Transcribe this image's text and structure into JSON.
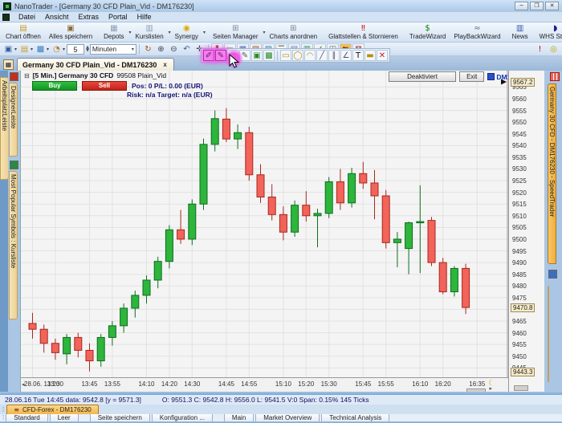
{
  "window": {
    "title": "NanoTrader - [Germany 30 CFD  Plain_Vid - DM176230]",
    "controls": [
      {
        "name": "minimize-button",
        "glyph": "─"
      },
      {
        "name": "maximize-button",
        "glyph": "❐"
      },
      {
        "name": "close-button",
        "glyph": "✕"
      }
    ]
  },
  "menu": {
    "items": [
      "Datei",
      "Ansicht",
      "Extras",
      "Portal",
      "Hilfe"
    ]
  },
  "toolbar_main": {
    "items": [
      {
        "name": "chart-oeffnen-button",
        "label": "Chart öffnen",
        "glyph": "▤",
        "color": "#c79a2e",
        "arrow": false,
        "sep_after": false
      },
      {
        "name": "alles-speichern-button",
        "label": "Alles speichern",
        "glyph": "▣",
        "color": "#8a6d3b",
        "arrow": false,
        "sep_after": true
      },
      {
        "name": "depots-button",
        "label": "Depots",
        "glyph": "▦",
        "color": "#8fa0b4",
        "arrow": true,
        "sep_after": false
      },
      {
        "name": "kurslisten-button",
        "label": "Kurslisten",
        "glyph": "▥",
        "color": "#8fa0b4",
        "arrow": true,
        "sep_after": false
      },
      {
        "name": "synergy-button",
        "label": "Synergy",
        "glyph": "◉",
        "color": "#e0a800",
        "arrow": true,
        "sep_after": true
      },
      {
        "name": "seiten-manager-button",
        "label": "Seiten Manager",
        "glyph": "⊞",
        "color": "#7a8aa0",
        "arrow": true,
        "sep_after": false
      },
      {
        "name": "charts-anordnen-button",
        "label": "Charts anordnen",
        "glyph": "⊞",
        "color": "#7a8aa0",
        "arrow": false,
        "sep_after": true
      },
      {
        "name": "glattstellen-stornieren-button",
        "label": "Glattstellen & Stornieren",
        "glyph": "‼",
        "color": "#d00000",
        "arrow": false,
        "sep_after": true
      },
      {
        "name": "tradewizard-button",
        "label": "TradeWizard",
        "glyph": "$",
        "color": "#067d06",
        "arrow": false,
        "sep_after": false
      },
      {
        "name": "playbackwizard-button",
        "label": "PlayBackWizard",
        "glyph": "≈",
        "color": "#607890",
        "arrow": false,
        "sep_after": true
      },
      {
        "name": "news-button",
        "label": "News",
        "glyph": "▥",
        "color": "#3355aa",
        "arrow": false,
        "sep_after": true
      },
      {
        "name": "whs-store-button",
        "label": "WHS Store",
        "glyph": "◗",
        "color": "#2a1a8f",
        "arrow": false,
        "sep_after": false
      },
      {
        "name": "whs-chat-button",
        "label": "WHS Chat",
        "glyph": "☻",
        "color": "#e8c000",
        "arrow": false,
        "sep_after": false
      },
      {
        "name": "whs-forum-button",
        "label": "WHS Forum",
        "glyph": "❞",
        "color": "#cdb800",
        "arrow": false,
        "sep_after": false
      }
    ]
  },
  "toolbar_chart": {
    "file_icons": [
      {
        "name": "save-icon",
        "glyph": "▣",
        "color": "#3a5fa8",
        "arrow": true
      },
      {
        "name": "open-folder-icon",
        "glyph": "▤",
        "color": "#c79a2e",
        "arrow": true
      },
      {
        "name": "template-icon",
        "glyph": "▩",
        "color": "#3a7fc0",
        "arrow": true
      },
      {
        "name": "period-clock-icon",
        "glyph": "◔",
        "color": "#c07820",
        "arrow": true
      }
    ],
    "period_value": "5",
    "period_unit": "Minuten",
    "nav_icons": [
      {
        "name": "refresh-icon",
        "glyph": "↻",
        "color": "#b05010"
      },
      {
        "name": "zoom-in-icon",
        "glyph": "⊕",
        "color": "#445"
      },
      {
        "name": "zoom-out-icon",
        "glyph": "⊖",
        "color": "#445"
      },
      {
        "name": "undo-icon",
        "glyph": "↶",
        "color": "#3a5fa8"
      },
      {
        "name": "pan-icon",
        "glyph": "✛",
        "color": "#445"
      }
    ],
    "mode_icons": [
      {
        "name": "chart-style-bars-icon",
        "glyph": "❚",
        "color": "#a03828"
      },
      {
        "name": "chart-style-candle-icon",
        "glyph": "▬",
        "color": "#2a7a32"
      },
      {
        "name": "chart-grid-icon",
        "glyph": "▦",
        "color": "#3a5fa8"
      },
      {
        "name": "chart-overlay-icon",
        "glyph": "▧",
        "color": "#9a6020"
      },
      {
        "name": "chart-compare-icon",
        "glyph": "▨",
        "color": "#3a7fa0"
      },
      {
        "name": "chart-list-icon",
        "glyph": "☰",
        "color": "#705818"
      },
      {
        "name": "chart-layers-icon",
        "glyph": "▤",
        "color": "#4a6aa8"
      },
      {
        "name": "chart-sentiment-icon",
        "glyph": "▥",
        "color": "#2a8a52"
      },
      {
        "name": "chart-check-icon",
        "glyph": "✓",
        "color": "#1a7a1a"
      },
      {
        "name": "chart-split-icon",
        "glyph": "◫",
        "color": "#666"
      },
      {
        "name": "hand-tool-icon",
        "glyph": "☛",
        "color": "#803808",
        "bg": "#f0c060"
      },
      {
        "name": "session-icon",
        "glyph": "⊠",
        "color": "#8a2020"
      }
    ],
    "far_icons": [
      {
        "name": "alert-icon",
        "glyph": "!",
        "color": "#d00000"
      },
      {
        "name": "timer-icon",
        "glyph": "◎",
        "color": "#c0a000"
      }
    ]
  },
  "drawing_toolbar": {
    "icons": [
      {
        "name": "order-tool-pink-icon",
        "glyph": "✐",
        "color": "#6a1468",
        "hl": true
      },
      {
        "name": "order-tool-pink-2-icon",
        "glyph": "✎",
        "color": "#6a1468",
        "hl": true
      },
      {
        "name": "snapshot-tool-icon",
        "glyph": "▭",
        "color": "#556"
      },
      {
        "name": "edit-tool-icon",
        "glyph": "✎",
        "color": "#556"
      },
      {
        "name": "green-study-icon",
        "glyph": "▣",
        "color": "#2a8a2a"
      },
      {
        "name": "green-study-2-icon",
        "glyph": "▩",
        "color": "#2a8a2a"
      },
      {
        "name": "rect-tool-icon",
        "glyph": "▭",
        "color": "#b89000"
      },
      {
        "name": "ellipse-tool-icon",
        "glyph": "◯",
        "color": "#b89000"
      },
      {
        "name": "arc-tool-icon",
        "glyph": "◠",
        "color": "#b89000"
      },
      {
        "name": "line-tool-icon",
        "glyph": "╱",
        "color": "#556"
      },
      {
        "name": "parallel-tool-icon",
        "glyph": "∥",
        "color": "#556"
      },
      {
        "name": "angle-tool-icon",
        "glyph": "∠",
        "color": "#556"
      },
      {
        "name": "text-tool-icon",
        "glyph": "T",
        "color": "#111"
      },
      {
        "name": "ruler-tool-icon",
        "glyph": "▬",
        "color": "#b89000"
      },
      {
        "name": "delete-tool-icon",
        "glyph": "✕",
        "color": "#c02020"
      }
    ]
  },
  "document_tab": {
    "label": "Germany 30 CFD  Plain_Vid - DM176230",
    "close_glyph": "x"
  },
  "chart_header": {
    "collapse_glyph": "⊟",
    "title": "[5 Min.] Germany 30 CFD",
    "code": "99508 Plain_Vid",
    "buy_label": "Buy",
    "sell_label": "Sell",
    "pos_line": "Pos: 0  P/L: 0.00  (EUR)",
    "risk_line": "Risk: n/a  Target: n/a (EUR)",
    "deactivated_label": "Deaktiviert",
    "exit_label": "Exit",
    "account_label": "DM176230"
  },
  "left_sidebar": {
    "strip1_tab": "ArbeitsplatzLeiste",
    "tabs": [
      {
        "name": "sidebar-tab-designerleiste",
        "label": "DesignerLeiste"
      },
      {
        "name": "sidebar-tab-most-popular-symbols",
        "label": "Most Popular Symbols : Kursliste"
      }
    ]
  },
  "right_sidebar": {
    "tab": "Germany 30 CFD - DM176230 - SpeedTrader",
    "tab2": ""
  },
  "chart_data": {
    "type": "candlestick",
    "title": "Germany 30 CFD, 5-minute candlestick chart",
    "ylim": [
      9441,
      9572
    ],
    "y_ticks": [
      9445,
      9450,
      9455,
      9460,
      9465,
      9470,
      9475,
      9480,
      9485,
      9490,
      9495,
      9500,
      9505,
      9510,
      9515,
      9520,
      9525,
      9530,
      9535,
      9540,
      9545,
      9550,
      9555,
      9560,
      9565
    ],
    "price_markers": {
      "session_high": "9567.2",
      "current": "9470.8",
      "session_low": "9443.3"
    },
    "current_price": 9470.8,
    "session_high": 9567.2,
    "session_low": 9443.3,
    "x_labels": [
      {
        "t": "28.06. 13:20",
        "i": 0,
        "first": true
      },
      {
        "t": "13:30",
        "i": 2
      },
      {
        "t": "13:45",
        "i": 5
      },
      {
        "t": "13:55",
        "i": 7
      },
      {
        "t": "14:10",
        "i": 10
      },
      {
        "t": "14:20",
        "i": 12
      },
      {
        "t": "14:30",
        "i": 14
      },
      {
        "t": "14:45",
        "i": 17
      },
      {
        "t": "14:55",
        "i": 19
      },
      {
        "t": "15:10",
        "i": 22
      },
      {
        "t": "15:20",
        "i": 24
      },
      {
        "t": "15:30",
        "i": 26
      },
      {
        "t": "15:45",
        "i": 29
      },
      {
        "t": "15:55",
        "i": 31
      },
      {
        "t": "16:10",
        "i": 34
      },
      {
        "t": "16:20",
        "i": 36
      },
      {
        "t": "16:35",
        "i": 39
      }
    ],
    "candles": [
      [
        "13:20",
        9464.0,
        9468.5,
        9457.5,
        9461.5
      ],
      [
        "13:25",
        9461.5,
        9463.5,
        9451.5,
        9455.5
      ],
      [
        "13:30",
        9455.5,
        9457.5,
        9448.5,
        9451.5
      ],
      [
        "13:35",
        9451.0,
        9459.5,
        9446.5,
        9458.0
      ],
      [
        "13:40",
        9458.0,
        9460.0,
        9449.5,
        9452.5
      ],
      [
        "13:45",
        9452.5,
        9455.5,
        9443.5,
        9448.0
      ],
      [
        "13:50",
        9448.0,
        9459.5,
        9445.5,
        9458.0
      ],
      [
        "13:55",
        9458.0,
        9465.0,
        9454.5,
        9463.0
      ],
      [
        "14:00",
        9463.0,
        9472.5,
        9460.0,
        9470.5
      ],
      [
        "14:05",
        9470.5,
        9478.0,
        9466.5,
        9476.0
      ],
      [
        "14:10",
        9476.0,
        9484.5,
        9472.5,
        9482.5
      ],
      [
        "14:15",
        9482.5,
        9492.5,
        9479.0,
        9490.5
      ],
      [
        "14:20",
        9490.5,
        9506.0,
        9487.5,
        9504.0
      ],
      [
        "14:25",
        9504.0,
        9512.5,
        9498.0,
        9500.0
      ],
      [
        "14:30",
        9500.0,
        9517.0,
        9497.5,
        9515.0
      ],
      [
        "14:35",
        9515.0,
        9543.0,
        9512.5,
        9540.5
      ],
      [
        "14:40",
        9540.5,
        9555.0,
        9537.5,
        9551.5
      ],
      [
        "14:45",
        9551.3,
        9556.0,
        9541.5,
        9542.8
      ],
      [
        "14:50",
        9542.8,
        9549.0,
        9538.5,
        9545.5
      ],
      [
        "14:55",
        9545.5,
        9548.0,
        9525.0,
        9527.5
      ],
      [
        "15:00",
        9527.5,
        9532.0,
        9515.5,
        9518.0
      ],
      [
        "15:05",
        9518.0,
        9523.5,
        9508.0,
        9510.5
      ],
      [
        "15:10",
        9510.5,
        9514.0,
        9499.5,
        9503.0
      ],
      [
        "15:15",
        9503.0,
        9516.5,
        9501.0,
        9514.5
      ],
      [
        "15:20",
        9514.5,
        9520.5,
        9507.5,
        9510.0
      ],
      [
        "15:25",
        9510.0,
        9513.0,
        9496.5,
        9511.0
      ],
      [
        "15:30",
        9511.0,
        9526.5,
        9509.0,
        9524.5
      ],
      [
        "15:35",
        9524.5,
        9530.0,
        9512.5,
        9515.5
      ],
      [
        "15:40",
        9515.5,
        9530.5,
        9513.5,
        9528.0
      ],
      [
        "15:45",
        9528.0,
        9533.0,
        9521.5,
        9524.0
      ],
      [
        "15:50",
        9524.0,
        9529.5,
        9508.5,
        9518.5
      ],
      [
        "15:55",
        9518.5,
        9521.0,
        9496.0,
        9498.5
      ],
      [
        "16:00",
        9498.5,
        9503.0,
        9488.0,
        9500.0
      ],
      [
        "16:05",
        9496.0,
        9507.5,
        9485.0,
        9507.0
      ],
      [
        "16:10",
        9507.0,
        9523.0,
        9485.5,
        9507.5
      ],
      [
        "16:15",
        9508.0,
        9509.5,
        9488.5,
        9490.0
      ],
      [
        "16:20",
        9490.0,
        9492.0,
        9476.5,
        9477.5
      ],
      [
        "16:25",
        9477.5,
        9488.5,
        9475.5,
        9487.5
      ],
      [
        "16:30",
        9487.5,
        9489.5,
        9468.0,
        9470.8
      ]
    ],
    "colors": {
      "up": "#2db53c",
      "up_border": "#0e6e1e",
      "down": "#f2635a",
      "down_border": "#a8281e",
      "grid": "#e2e2e2",
      "bg": "#f4f4f4"
    },
    "moon_glyph": "☾",
    "legend_position": "none",
    "grid": true
  },
  "status_bar": {
    "time_info": "28.06.16 Tue  14:45 data: 9542.8 [y = 9571.3]",
    "ohlc_info": "O: 9551.3 C: 9542.8 H: 9556.0 L: 9541.5 V:0 Span: 0.15% 145 Ticks"
  },
  "bottom": {
    "account_tab": "CFD-Forex - DM176230",
    "tab_groups": [
      [
        "Standard",
        "Leer"
      ],
      [
        "Seite speichern",
        "Konfiguration ..."
      ],
      [
        "Main",
        "Market Overview",
        "Technical Analysis"
      ]
    ]
  }
}
